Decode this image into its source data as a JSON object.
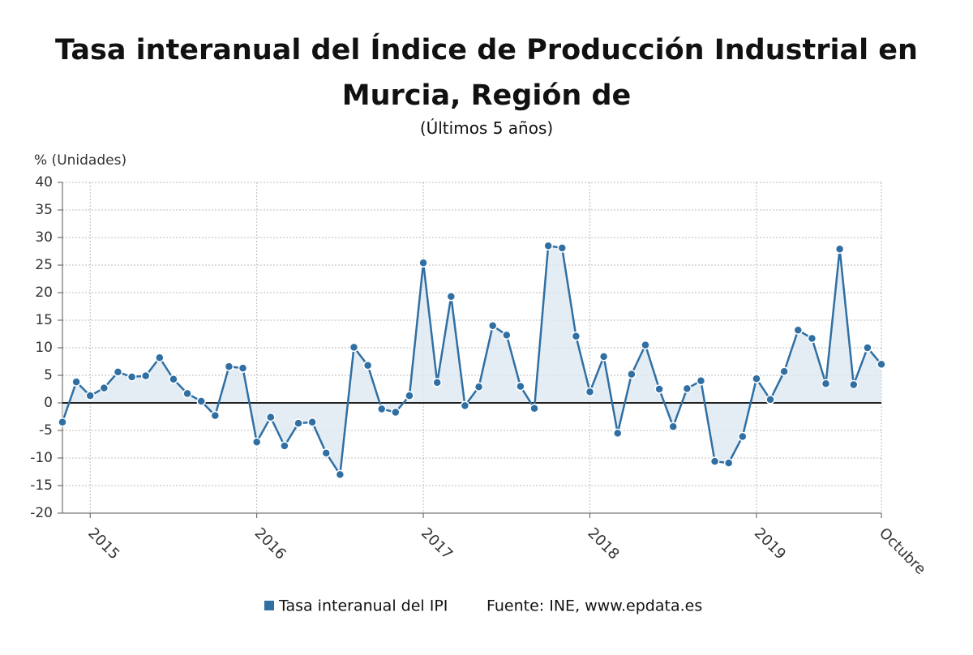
{
  "chart_data": {
    "type": "line",
    "title": "Tasa interanual del Índice de Producción Industrial en Murcia, Región de",
    "subtitle": "(Últimos 5 años)",
    "y_label": "% (Unidades)",
    "source": "Fuente: INE, www.epdata.es",
    "categories": [
      null,
      null,
      "2015",
      null,
      null,
      null,
      null,
      null,
      null,
      null,
      null,
      null,
      null,
      null,
      "2016",
      null,
      null,
      null,
      null,
      null,
      null,
      null,
      null,
      null,
      null,
      null,
      "2017",
      null,
      null,
      null,
      null,
      null,
      null,
      null,
      null,
      null,
      null,
      null,
      "2018",
      null,
      null,
      null,
      null,
      null,
      null,
      null,
      null,
      null,
      null,
      null,
      "2019",
      null,
      null,
      null,
      null,
      null,
      null,
      null,
      null,
      "Octubre"
    ],
    "series": [
      {
        "name": "Tasa interanual del IPI",
        "color": "#2f6fa3",
        "values": [
          -3.5,
          3.8,
          1.3,
          2.7,
          5.6,
          4.7,
          4.9,
          8.2,
          4.3,
          1.7,
          0.3,
          -2.3,
          6.6,
          6.3,
          -7.1,
          -2.6,
          -7.8,
          -3.7,
          -3.5,
          -9.1,
          -13,
          10.1,
          6.8,
          -1.1,
          -1.7,
          1.3,
          25.4,
          3.7,
          19.3,
          -0.5,
          2.9,
          14,
          12.3,
          3,
          -1,
          28.5,
          28.1,
          12.1,
          2,
          8.4,
          -5.5,
          5.2,
          10.5,
          2.5,
          -4.3,
          2.6,
          4,
          -10.6,
          -10.9,
          -6.1,
          4.4,
          0.6,
          5.7,
          13.2,
          11.7,
          3.5,
          27.9,
          3.3,
          10,
          7
        ]
      }
    ],
    "ylim": [
      -20,
      40
    ],
    "yticks": [
      -20,
      -15,
      -10,
      -5,
      0,
      5,
      10,
      15,
      20,
      25,
      30,
      35,
      40
    ],
    "grid": true
  }
}
